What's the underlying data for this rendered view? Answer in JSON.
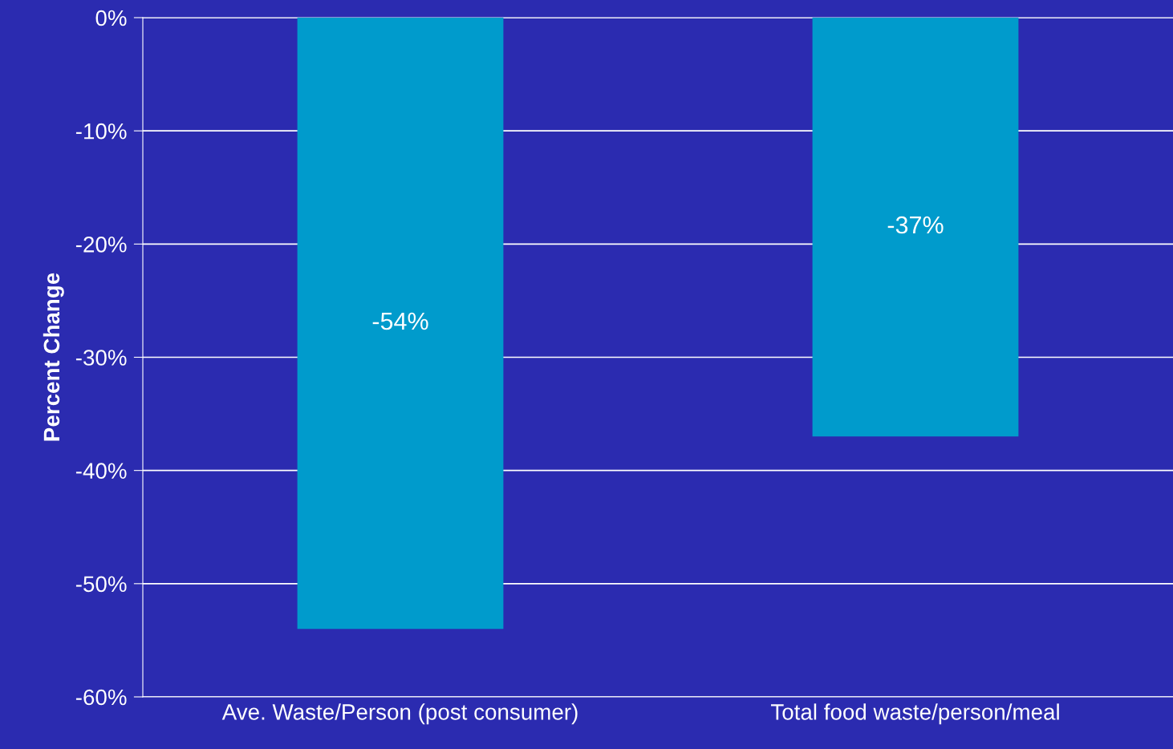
{
  "chart_data": {
    "type": "bar",
    "ylabel": "Percent Change",
    "categories": [
      "Ave. Waste/Person (post consumer)",
      "Total food waste/person/meal"
    ],
    "values": [
      -54,
      -37
    ],
    "color": "#009bcc",
    "value_labels": [
      "-54%",
      "-37%"
    ],
    "ylim": [
      -60,
      0
    ],
    "yticks": [
      {
        "value": -60,
        "label": "-60%"
      },
      {
        "value": -50,
        "label": "-50%"
      },
      {
        "value": -40,
        "label": "-40%"
      },
      {
        "value": -30,
        "label": "-30%"
      },
      {
        "value": -20,
        "label": "-20%"
      },
      {
        "value": -10,
        "label": "-10%"
      },
      {
        "value": 0,
        "label": "0%"
      }
    ],
    "grid": "y"
  }
}
